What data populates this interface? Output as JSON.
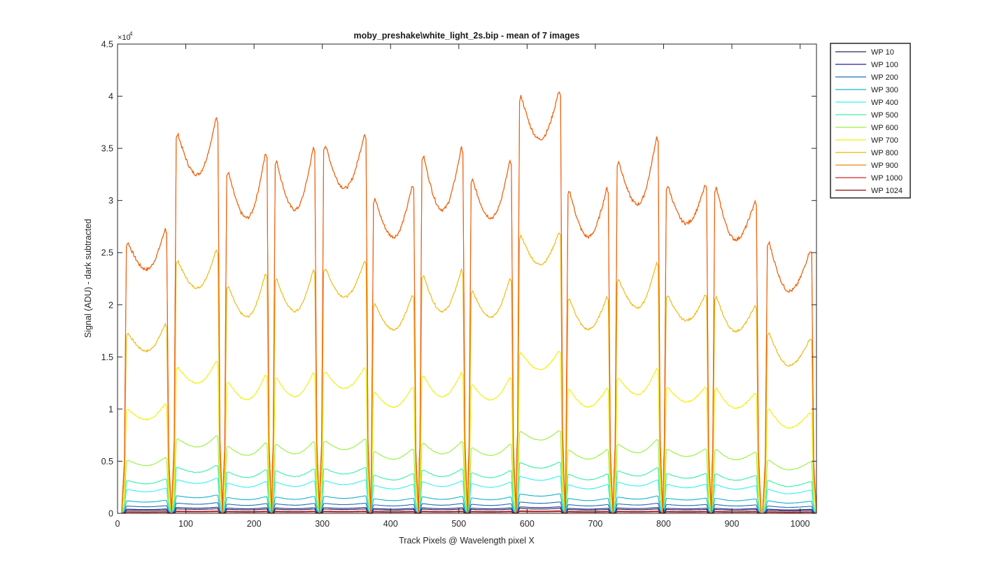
{
  "chart_data": {
    "type": "line",
    "title": "moby_preshake\\white_light_2s.bip - mean of 7 images",
    "xlabel": "Track Pixels @ Wavelength pixel X",
    "ylabel": "Signal (ADU) - dark subtracted",
    "y_exponent_label": "×10",
    "y_exponent_power": "4",
    "xlim": [
      0,
      1024
    ],
    "ylim": [
      0,
      45000
    ],
    "x_ticks": [
      0,
      100,
      200,
      300,
      400,
      500,
      600,
      700,
      800,
      900,
      1000
    ],
    "x_tick_labels": [
      "0",
      "100",
      "200",
      "300",
      "400",
      "500",
      "600",
      "700",
      "800",
      "900",
      "1000"
    ],
    "y_ticks": [
      0,
      5000,
      10000,
      15000,
      20000,
      25000,
      30000,
      35000,
      40000,
      45000
    ],
    "y_tick_labels": [
      "0",
      "0.5",
      "1",
      "1.5",
      "2",
      "2.5",
      "3",
      "3.5",
      "4",
      "4.5"
    ],
    "grid": false,
    "legend_position": "outside-right-top",
    "segments": [
      {
        "start": 10,
        "end": 75,
        "left": 1.0,
        "dip": 0.9,
        "right": 1.05
      },
      {
        "start": 83,
        "end": 150,
        "left": 1.4,
        "dip": 1.25,
        "right": 1.46
      },
      {
        "start": 157,
        "end": 222,
        "left": 1.26,
        "dip": 1.09,
        "right": 1.33
      },
      {
        "start": 228,
        "end": 292,
        "left": 1.3,
        "dip": 1.12,
        "right": 1.35
      },
      {
        "start": 299,
        "end": 367,
        "left": 1.36,
        "dip": 1.2,
        "right": 1.4
      },
      {
        "start": 372,
        "end": 437,
        "left": 1.16,
        "dip": 1.02,
        "right": 1.21
      },
      {
        "start": 443,
        "end": 509,
        "left": 1.32,
        "dip": 1.12,
        "right": 1.35
      },
      {
        "start": 515,
        "end": 580,
        "left": 1.23,
        "dip": 1.09,
        "right": 1.3
      },
      {
        "start": 586,
        "end": 652,
        "left": 1.54,
        "dip": 1.38,
        "right": 1.56
      },
      {
        "start": 657,
        "end": 722,
        "left": 1.19,
        "dip": 1.02,
        "right": 1.2
      },
      {
        "start": 729,
        "end": 795,
        "left": 1.3,
        "dip": 1.14,
        "right": 1.39
      },
      {
        "start": 801,
        "end": 866,
        "left": 1.21,
        "dip": 1.07,
        "right": 1.21
      },
      {
        "start": 872,
        "end": 939,
        "left": 1.2,
        "dip": 1.01,
        "right": 1.15
      },
      {
        "start": 949,
        "end": 1020,
        "left": 1.0,
        "dip": 0.82,
        "right": 0.97
      }
    ],
    "series": [
      {
        "name": "WP 10",
        "color": "#2a2a5a",
        "peak": 300
      },
      {
        "name": "WP 100",
        "color": "#23238c",
        "peak": 400
      },
      {
        "name": "WP 200",
        "color": "#1f6fb4",
        "peak": 700
      },
      {
        "name": "WP 300",
        "color": "#19b4c8",
        "peak": 1200
      },
      {
        "name": "WP 400",
        "color": "#3cf0f0",
        "peak": 2300
      },
      {
        "name": "WP 500",
        "color": "#3cf0aa",
        "peak": 3150
      },
      {
        "name": "WP 600",
        "color": "#9bf040",
        "peak": 5100
      },
      {
        "name": "WP 700",
        "color": "#f0f000",
        "peak": 10000
      },
      {
        "name": "WP 800",
        "color": "#f0b400",
        "peak": 17300
      },
      {
        "name": "WP 900",
        "color": "#e9890f",
        "peak": 26000
      },
      {
        "name": "WP 1000",
        "color": "#d62828",
        "peak": 100
      },
      {
        "name": "WP 1024",
        "color": "#8c0a0a",
        "peak": 150
      },
      {
        "name": "",
        "color": "#f05a0a",
        "peak": 26000,
        "note": "unlabeled top curve"
      }
    ]
  }
}
